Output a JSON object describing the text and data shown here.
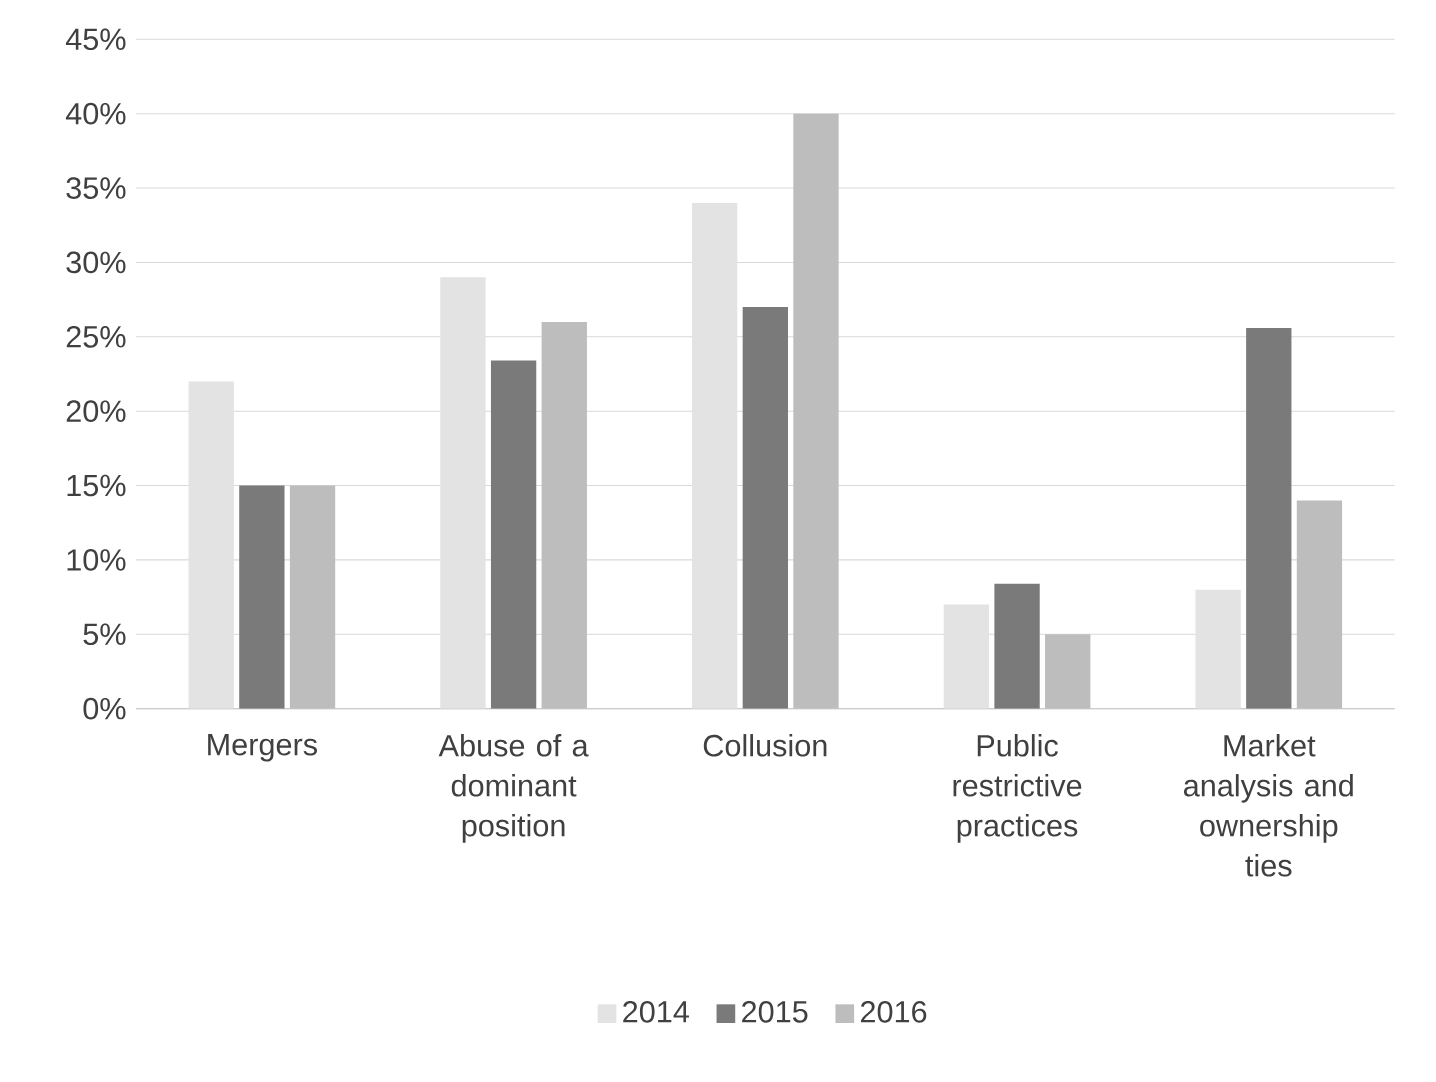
{
  "chart_data": {
    "type": "bar",
    "categories": [
      "Mergers",
      "Abuse of a dominant position",
      "Collusion",
      "Public restrictive practices",
      "Market analysis and ownership ties"
    ],
    "series": [
      {
        "name": "2014",
        "color": "#e3e3e3",
        "values": [
          22,
          29,
          34,
          7,
          8
        ]
      },
      {
        "name": "2015",
        "color": "#7a7a7a",
        "values": [
          15,
          23.4,
          27,
          8.4,
          25.6
        ]
      },
      {
        "name": "2016",
        "color": "#bdbdbd",
        "values": [
          15,
          26,
          40,
          5,
          14
        ]
      }
    ],
    "ylim": [
      0,
      45
    ],
    "yticks": [
      {
        "value": 0,
        "label": "0%"
      },
      {
        "value": 5,
        "label": "5%"
      },
      {
        "value": 10,
        "label": "10%"
      },
      {
        "value": 15,
        "label": "15%"
      },
      {
        "value": 20,
        "label": "20%"
      },
      {
        "value": 25,
        "label": "25%"
      },
      {
        "value": 30,
        "label": "30%"
      },
      {
        "value": 35,
        "label": "35%"
      },
      {
        "value": 40,
        "label": "40%"
      },
      {
        "value": 45,
        "label": "45%"
      }
    ],
    "grid": "y",
    "legend": "bottom"
  }
}
